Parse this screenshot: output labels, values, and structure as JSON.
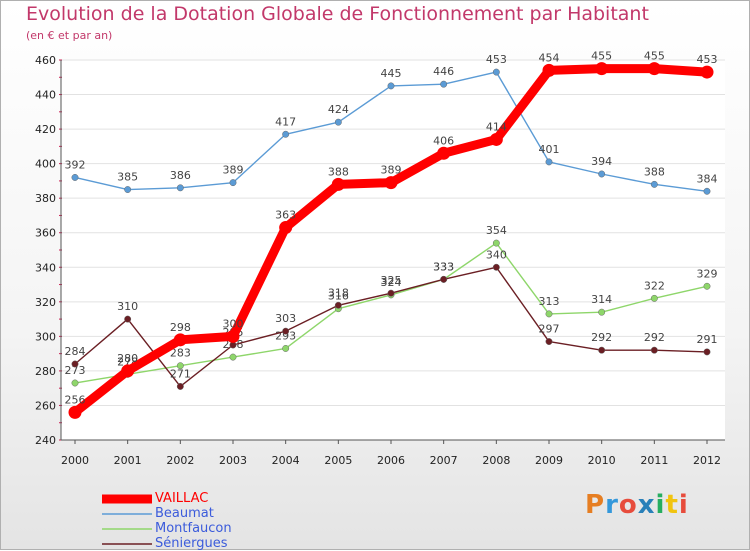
{
  "chart_data": {
    "type": "line",
    "title": "Evolution de la Dotation Globale de Fonctionnement par Habitant",
    "subtitle": "(en € et par an)",
    "x": [
      "2000",
      "2001",
      "2002",
      "2003",
      "2004",
      "2005",
      "2006",
      "2007",
      "2008",
      "2009",
      "2010",
      "2011",
      "2012"
    ],
    "ylim": [
      240,
      460
    ],
    "yticks": [
      240,
      260,
      280,
      300,
      320,
      340,
      360,
      380,
      400,
      420,
      440,
      460
    ],
    "series": [
      {
        "name": "Beaumat",
        "color": "#5b9bd5",
        "values": [
          392,
          385,
          386,
          389,
          417,
          424,
          445,
          446,
          453,
          401,
          394,
          388,
          384
        ]
      },
      {
        "name": "Montfaucon",
        "color": "#8ed66a",
        "values": [
          273,
          278,
          283,
          288,
          293,
          316,
          324,
          333,
          354,
          313,
          314,
          322,
          329
        ]
      },
      {
        "name": "Séniergues",
        "color": "#6b1f24",
        "values": [
          284,
          310,
          271,
          295,
          303,
          318,
          325,
          333,
          340,
          297,
          292,
          292,
          291
        ]
      },
      {
        "name": "VAILLAC",
        "color": "#ff0000",
        "values": [
          256,
          280,
          298,
          300,
          363,
          388,
          389,
          406,
          414,
          454,
          455,
          455,
          453
        ]
      }
    ],
    "legend": [
      "VAILLAC",
      "Beaumat",
      "Montfaucon",
      "Séniergues"
    ]
  },
  "logo": {
    "text": "Proxiti",
    "letters": [
      "P",
      "r",
      "o",
      "x",
      "i",
      "t",
      "i"
    ],
    "colors": [
      "#e67e22",
      "#3498db",
      "#e74c3c",
      "#2980b9",
      "#27ae60",
      "#f1c40f",
      "#e74c3c"
    ]
  }
}
